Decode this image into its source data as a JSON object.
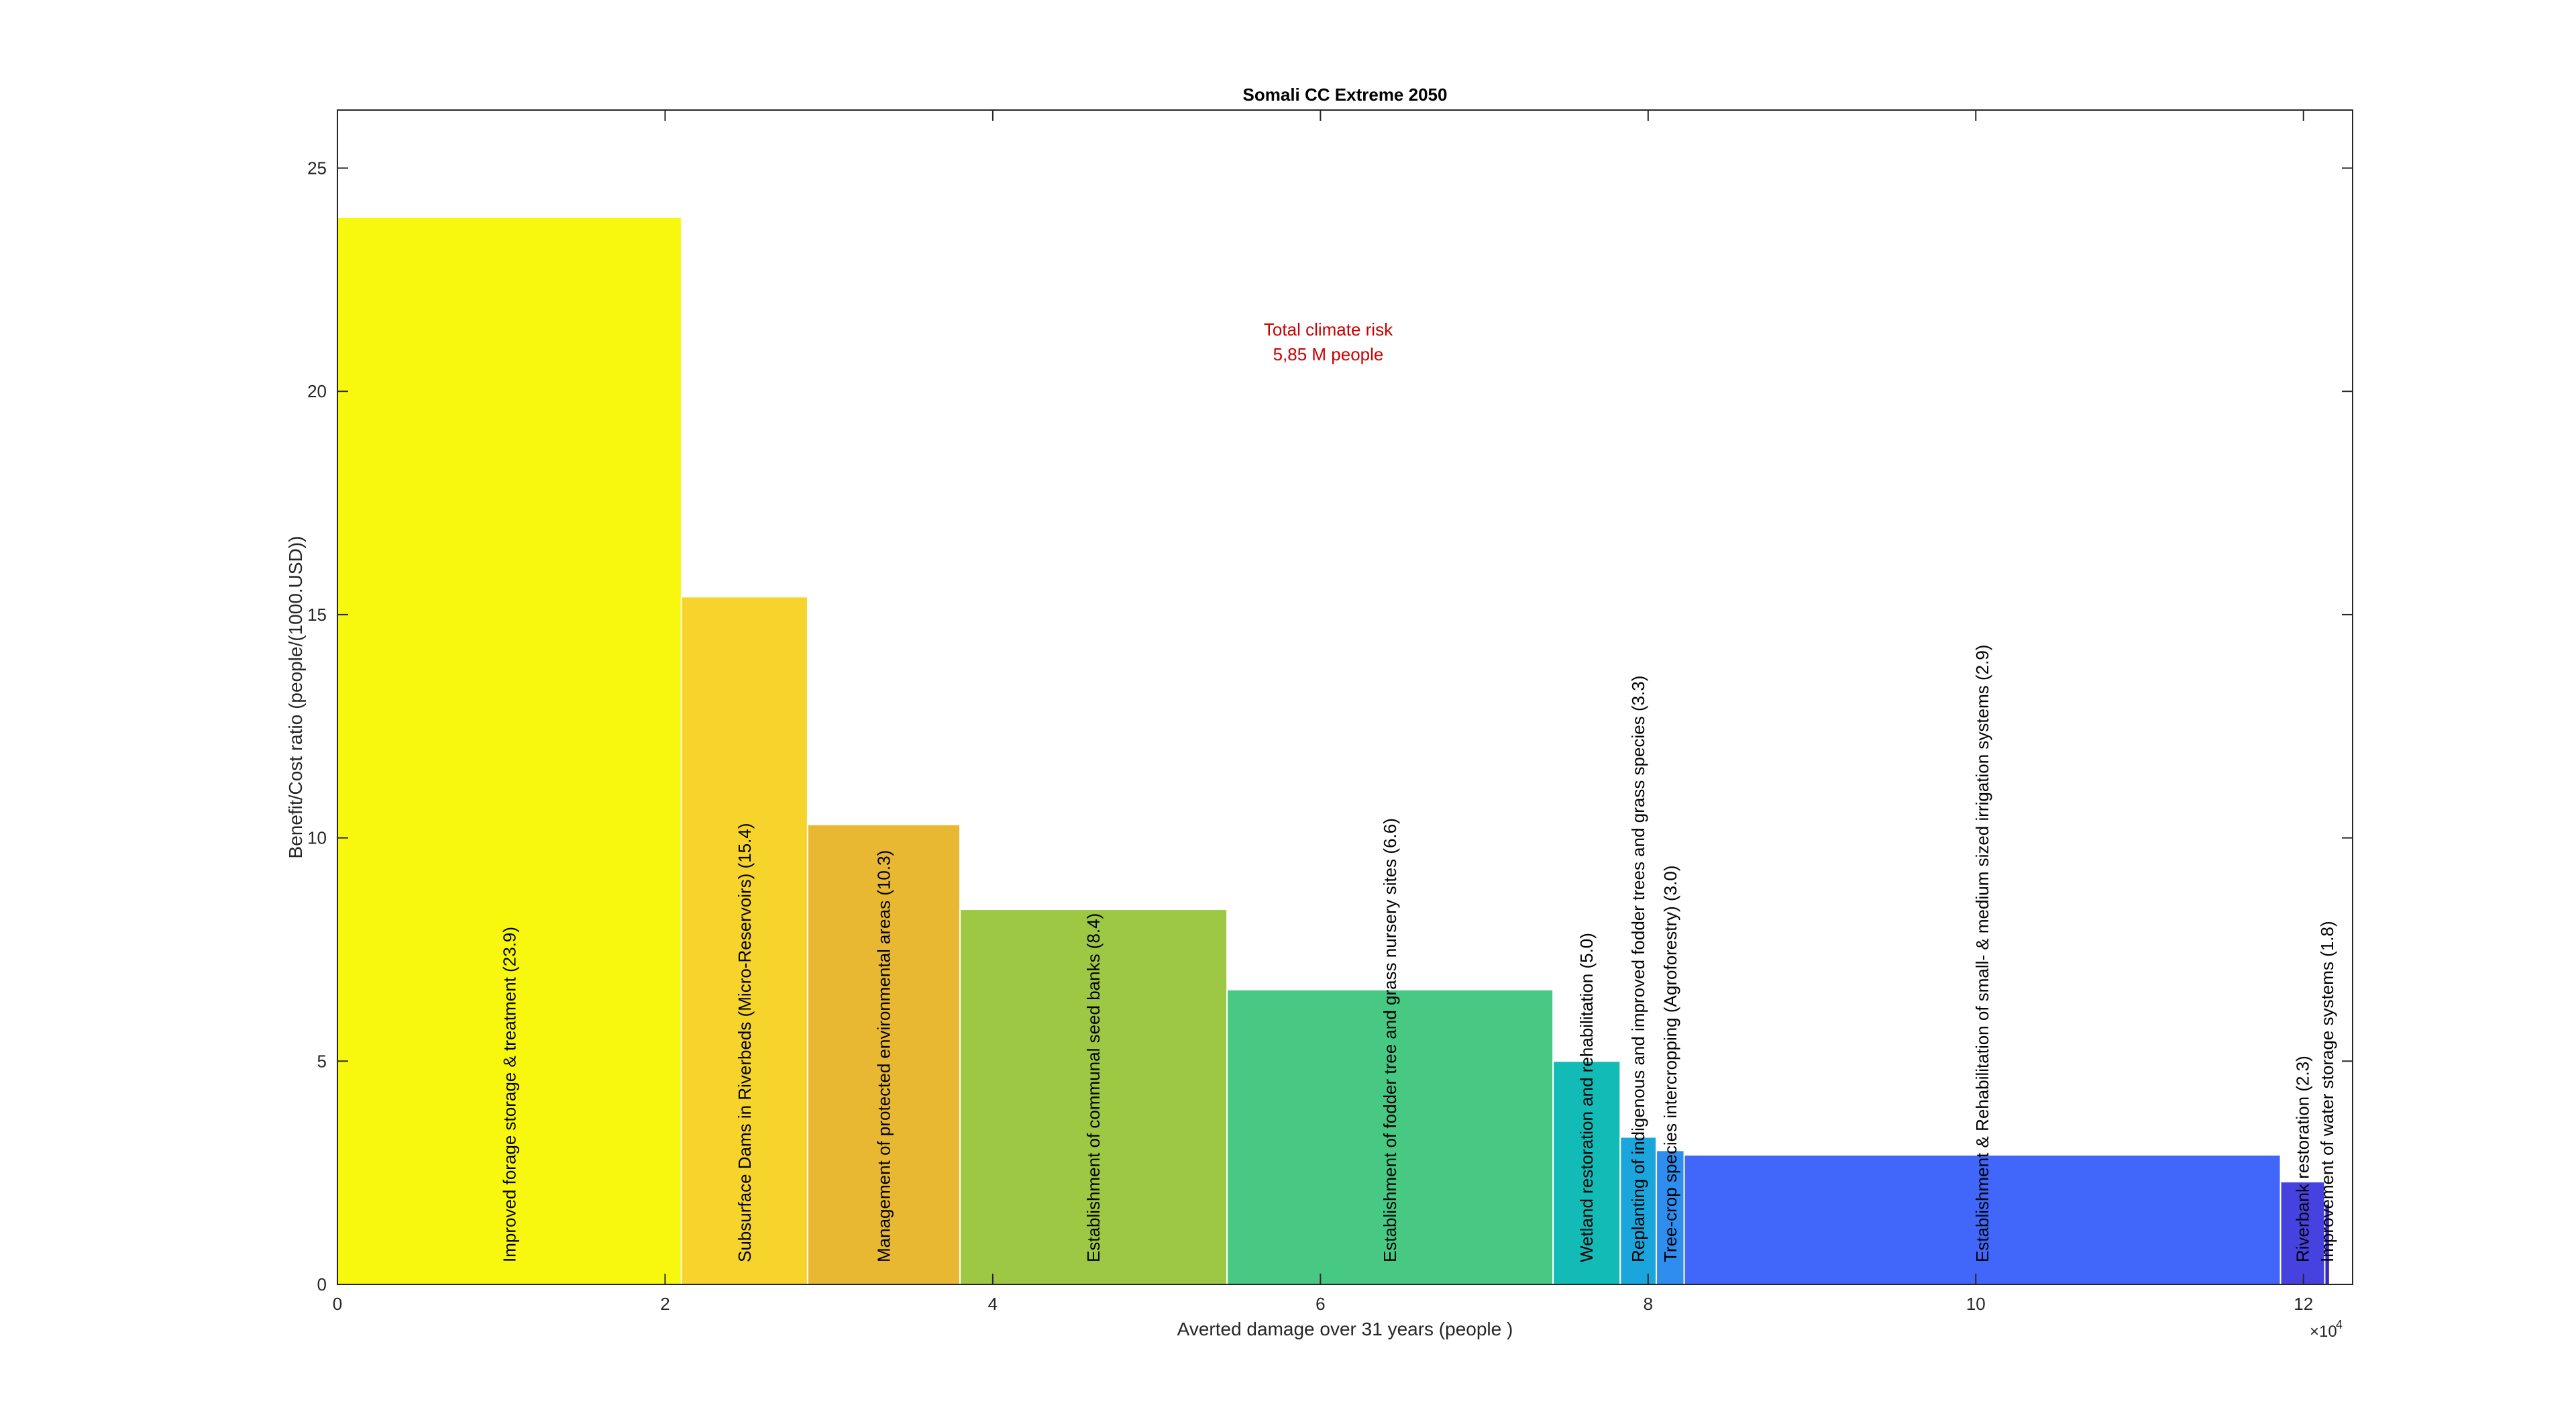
{
  "chart_data": {
    "type": "bar",
    "title": "Somali CC Extreme 2050",
    "xlabel": "Averted damage over 31 years (people )",
    "ylabel": "Benefit/Cost ratio (people/(1000.USD))",
    "x_exponent_base": "×10",
    "x_exponent_power": "4",
    "xlim": [
      0,
      123000
    ],
    "ylim": [
      0,
      26.3
    ],
    "xticks": [
      0,
      2,
      4,
      6,
      8,
      10,
      12
    ],
    "yticks": [
      0,
      5,
      10,
      15,
      20,
      25
    ],
    "grid": false,
    "annotation": [
      "Total climate risk",
      "5,85 M people"
    ],
    "annotation_color": "#cc0000",
    "bars": [
      {
        "label": "Improved forage storage & treatment  (23.9)",
        "start": 0,
        "end": 21000,
        "value": 23.9,
        "color": "#f8f80f"
      },
      {
        "label": "Subsurface Dams in Riverbeds (Micro-Reservoirs)  (15.4)",
        "start": 21000,
        "end": 28700,
        "value": 15.4,
        "color": "#f6d42c"
      },
      {
        "label": "Management of protected environmental areas  (10.3)",
        "start": 28700,
        "end": 38000,
        "value": 10.3,
        "color": "#e8b832"
      },
      {
        "label": "Establishment of communal seed banks  (8.4)",
        "start": 38000,
        "end": 54300,
        "value": 8.4,
        "color": "#9dc843"
      },
      {
        "label": "Establishment of fodder tree and grass nursery sites  (6.6)",
        "start": 54300,
        "end": 74200,
        "value": 6.6,
        "color": "#47c984"
      },
      {
        "label": "Wetland restoration and rehabilitation  (5.0)",
        "start": 74200,
        "end": 78300,
        "value": 5.0,
        "color": "#13bbb7"
      },
      {
        "label": "Replanting of indigenous and improved fodder trees and grass species  (3.3)",
        "start": 78300,
        "end": 80500,
        "value": 3.3,
        "color": "#1aa6dc"
      },
      {
        "label": "Tree-crop species intercropping (Agroforestry)  (3.0)",
        "start": 80500,
        "end": 82200,
        "value": 3.0,
        "color": "#2f8df0"
      },
      {
        "label": "Establishment & Rehabilitation of small- & medium sized irrigation systems  (2.9)",
        "start": 82200,
        "end": 118600,
        "value": 2.9,
        "color": "#4066fa"
      },
      {
        "label": "Riverbank restoration  (2.3)",
        "start": 118600,
        "end": 121300,
        "value": 2.3,
        "color": "#4642df"
      },
      {
        "label": "Improvement of water storage systems  (1.8)",
        "start": 121300,
        "end": 121600,
        "value": 1.8,
        "color": "#3a27c0"
      }
    ]
  }
}
